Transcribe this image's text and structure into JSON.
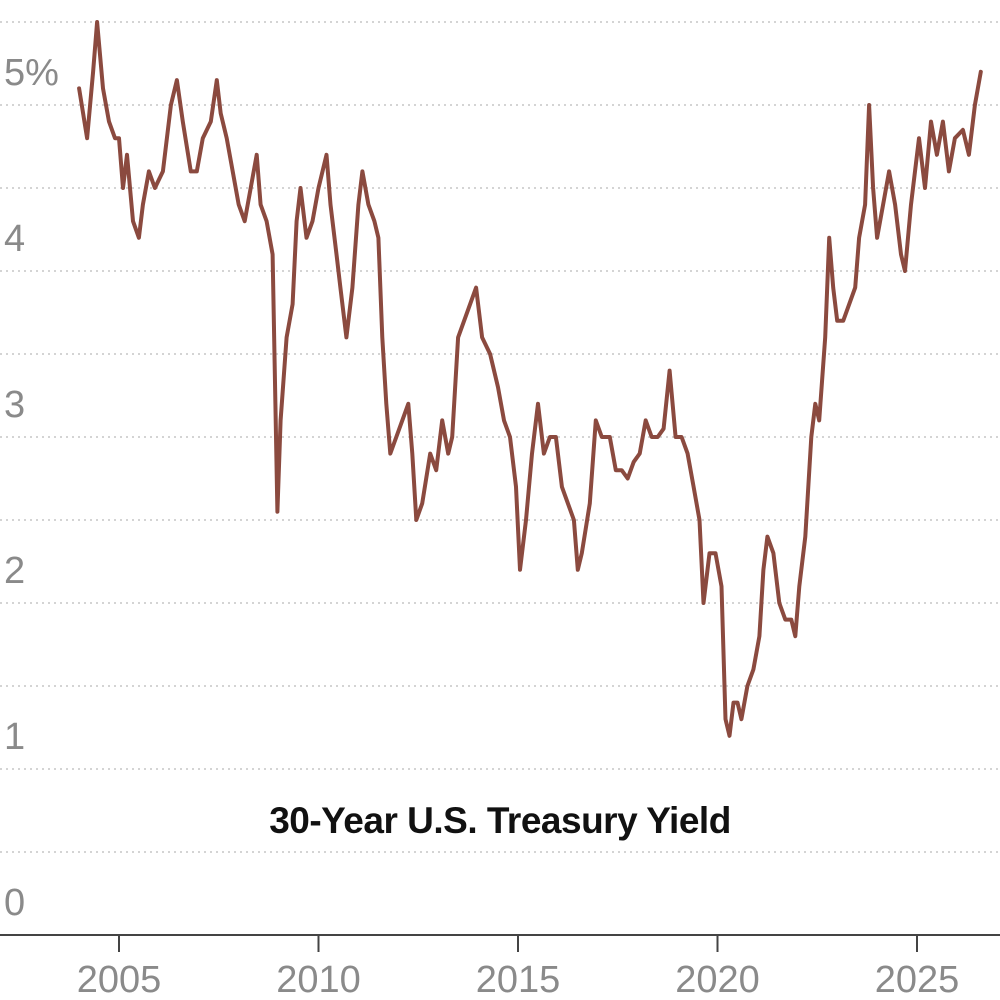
{
  "chart_data": {
    "type": "line",
    "title": "30-Year U.S. Treasury Yield",
    "xlabel": "",
    "ylabel": "",
    "xlim": [
      2002.0,
      2027.0
    ],
    "ylim": [
      -0.2,
      5.5
    ],
    "y_ticks": [
      {
        "value": 0,
        "label": "0"
      },
      {
        "value": 1,
        "label": "1"
      },
      {
        "value": 2,
        "label": "2"
      },
      {
        "value": 3,
        "label": "3"
      },
      {
        "value": 4,
        "label": "4"
      },
      {
        "value": 5,
        "label": "5%"
      }
    ],
    "y_gridlines": [
      0.5,
      1,
      1.5,
      2,
      2.5,
      3,
      3.5,
      4,
      4.5,
      5,
      5.5
    ],
    "x_ticks": [
      {
        "value": 2005,
        "label": "2005"
      },
      {
        "value": 2010,
        "label": "2010"
      },
      {
        "value": 2015,
        "label": "2015"
      },
      {
        "value": 2020,
        "label": "2020"
      },
      {
        "value": 2025,
        "label": "2025"
      }
    ],
    "grid": true,
    "line_color": "#8B4A3F",
    "series": [
      {
        "values": [
          [
            2004.0,
            5.1
          ],
          [
            2004.1,
            4.95
          ],
          [
            2004.2,
            4.8
          ],
          [
            2004.35,
            5.2
          ],
          [
            2004.45,
            5.5
          ],
          [
            2004.6,
            5.1
          ],
          [
            2004.75,
            4.9
          ],
          [
            2004.9,
            4.8
          ],
          [
            2005.0,
            4.8
          ],
          [
            2005.1,
            4.5
          ],
          [
            2005.2,
            4.7
          ],
          [
            2005.35,
            4.3
          ],
          [
            2005.5,
            4.2
          ],
          [
            2005.6,
            4.4
          ],
          [
            2005.75,
            4.6
          ],
          [
            2005.9,
            4.5
          ],
          [
            2006.1,
            4.6
          ],
          [
            2006.3,
            5.0
          ],
          [
            2006.45,
            5.15
          ],
          [
            2006.6,
            4.9
          ],
          [
            2006.8,
            4.6
          ],
          [
            2006.95,
            4.6
          ],
          [
            2007.1,
            4.8
          ],
          [
            2007.3,
            4.9
          ],
          [
            2007.45,
            5.15
          ],
          [
            2007.55,
            4.95
          ],
          [
            2007.7,
            4.8
          ],
          [
            2007.85,
            4.6
          ],
          [
            2008.0,
            4.4
          ],
          [
            2008.15,
            4.3
          ],
          [
            2008.3,
            4.5
          ],
          [
            2008.45,
            4.7
          ],
          [
            2008.55,
            4.4
          ],
          [
            2008.7,
            4.3
          ],
          [
            2008.85,
            4.1
          ],
          [
            2008.92,
            3.2
          ],
          [
            2008.97,
            2.55
          ],
          [
            2009.05,
            3.1
          ],
          [
            2009.2,
            3.6
          ],
          [
            2009.35,
            3.8
          ],
          [
            2009.45,
            4.3
          ],
          [
            2009.55,
            4.5
          ],
          [
            2009.7,
            4.2
          ],
          [
            2009.85,
            4.3
          ],
          [
            2010.0,
            4.5
          ],
          [
            2010.2,
            4.7
          ],
          [
            2010.3,
            4.4
          ],
          [
            2010.45,
            4.1
          ],
          [
            2010.55,
            3.9
          ],
          [
            2010.7,
            3.6
          ],
          [
            2010.85,
            3.9
          ],
          [
            2011.0,
            4.4
          ],
          [
            2011.1,
            4.6
          ],
          [
            2011.25,
            4.4
          ],
          [
            2011.4,
            4.3
          ],
          [
            2011.5,
            4.2
          ],
          [
            2011.6,
            3.6
          ],
          [
            2011.7,
            3.2
          ],
          [
            2011.8,
            2.9
          ],
          [
            2011.95,
            3.0
          ],
          [
            2012.1,
            3.1
          ],
          [
            2012.25,
            3.2
          ],
          [
            2012.35,
            2.9
          ],
          [
            2012.45,
            2.5
          ],
          [
            2012.6,
            2.6
          ],
          [
            2012.8,
            2.9
          ],
          [
            2012.95,
            2.8
          ],
          [
            2013.1,
            3.1
          ],
          [
            2013.25,
            2.9
          ],
          [
            2013.35,
            3.0
          ],
          [
            2013.5,
            3.6
          ],
          [
            2013.65,
            3.7
          ],
          [
            2013.8,
            3.8
          ],
          [
            2013.95,
            3.9
          ],
          [
            2014.1,
            3.6
          ],
          [
            2014.3,
            3.5
          ],
          [
            2014.5,
            3.3
          ],
          [
            2014.65,
            3.1
          ],
          [
            2014.8,
            3.0
          ],
          [
            2014.95,
            2.7
          ],
          [
            2015.05,
            2.2
          ],
          [
            2015.2,
            2.5
          ],
          [
            2015.35,
            2.9
          ],
          [
            2015.5,
            3.2
          ],
          [
            2015.65,
            2.9
          ],
          [
            2015.8,
            3.0
          ],
          [
            2015.95,
            3.0
          ],
          [
            2016.1,
            2.7
          ],
          [
            2016.25,
            2.6
          ],
          [
            2016.4,
            2.5
          ],
          [
            2016.5,
            2.2
          ],
          [
            2016.6,
            2.3
          ],
          [
            2016.8,
            2.6
          ],
          [
            2016.95,
            3.1
          ],
          [
            2017.1,
            3.0
          ],
          [
            2017.3,
            3.0
          ],
          [
            2017.45,
            2.8
          ],
          [
            2017.6,
            2.8
          ],
          [
            2017.75,
            2.75
          ],
          [
            2017.9,
            2.85
          ],
          [
            2018.05,
            2.9
          ],
          [
            2018.2,
            3.1
          ],
          [
            2018.35,
            3.0
          ],
          [
            2018.5,
            3.0
          ],
          [
            2018.65,
            3.05
          ],
          [
            2018.8,
            3.4
          ],
          [
            2018.95,
            3.0
          ],
          [
            2019.1,
            3.0
          ],
          [
            2019.25,
            2.9
          ],
          [
            2019.4,
            2.7
          ],
          [
            2019.55,
            2.5
          ],
          [
            2019.65,
            2.0
          ],
          [
            2019.8,
            2.3
          ],
          [
            2019.95,
            2.3
          ],
          [
            2020.1,
            2.1
          ],
          [
            2020.2,
            1.3
          ],
          [
            2020.3,
            1.2
          ],
          [
            2020.4,
            1.4
          ],
          [
            2020.5,
            1.4
          ],
          [
            2020.6,
            1.3
          ],
          [
            2020.75,
            1.5
          ],
          [
            2020.9,
            1.6
          ],
          [
            2021.05,
            1.8
          ],
          [
            2021.15,
            2.2
          ],
          [
            2021.25,
            2.4
          ],
          [
            2021.4,
            2.3
          ],
          [
            2021.55,
            2.0
          ],
          [
            2021.7,
            1.9
          ],
          [
            2021.85,
            1.9
          ],
          [
            2021.95,
            1.8
          ],
          [
            2022.05,
            2.1
          ],
          [
            2022.2,
            2.4
          ],
          [
            2022.35,
            3.0
          ],
          [
            2022.45,
            3.2
          ],
          [
            2022.55,
            3.1
          ],
          [
            2022.7,
            3.6
          ],
          [
            2022.8,
            4.2
          ],
          [
            2022.9,
            3.9
          ],
          [
            2023.0,
            3.7
          ],
          [
            2023.15,
            3.7
          ],
          [
            2023.3,
            3.8
          ],
          [
            2023.45,
            3.9
          ],
          [
            2023.55,
            4.2
          ],
          [
            2023.7,
            4.4
          ],
          [
            2023.8,
            5.0
          ],
          [
            2023.9,
            4.5
          ],
          [
            2024.0,
            4.2
          ],
          [
            2024.15,
            4.4
          ],
          [
            2024.3,
            4.6
          ],
          [
            2024.45,
            4.4
          ],
          [
            2024.6,
            4.1
          ],
          [
            2024.7,
            4.0
          ],
          [
            2024.85,
            4.4
          ],
          [
            2024.95,
            4.6
          ],
          [
            2025.05,
            4.8
          ],
          [
            2025.2,
            4.5
          ],
          [
            2025.35,
            4.9
          ],
          [
            2025.5,
            4.7
          ],
          [
            2025.65,
            4.9
          ],
          [
            2025.8,
            4.6
          ],
          [
            2025.95,
            4.8
          ],
          [
            2026.15,
            4.85
          ],
          [
            2026.3,
            4.7
          ],
          [
            2026.45,
            5.0
          ],
          [
            2026.6,
            5.2
          ]
        ]
      }
    ]
  }
}
